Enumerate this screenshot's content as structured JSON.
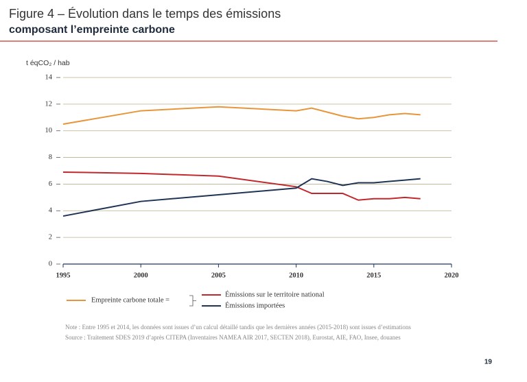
{
  "title": "Figure 4 – Évolution dans le temps des émissions",
  "subtitle": "composant l’empreinte carbone",
  "page_number": "19",
  "chart_data": {
    "type": "line",
    "y_axis_label": "t éqCO₂ / hab",
    "x": [
      1995,
      2000,
      2005,
      2010,
      2011,
      2012,
      2013,
      2014,
      2015,
      2016,
      2017,
      2018
    ],
    "series": [
      {
        "name": "Empreinte carbone totale =",
        "color": "#e8953a",
        "values": [
          10.5,
          11.5,
          11.8,
          11.5,
          11.7,
          11.4,
          11.1,
          10.9,
          11.0,
          11.2,
          11.3,
          11.2
        ]
      },
      {
        "name": "Émissions sur le territoire national",
        "color": "#c0282d",
        "values": [
          6.9,
          6.8,
          6.6,
          5.8,
          5.3,
          5.3,
          5.3,
          4.8,
          4.9,
          4.9,
          5.0,
          4.9
        ]
      },
      {
        "name": "Émissions importées",
        "color": "#1f3354",
        "values": [
          3.6,
          4.7,
          5.2,
          5.7,
          6.4,
          6.2,
          5.9,
          6.1,
          6.1,
          6.2,
          6.3,
          6.4
        ]
      }
    ],
    "xlim": [
      1995,
      2020
    ],
    "xticks": [
      1995,
      2000,
      2005,
      2010,
      2015,
      2020
    ],
    "ylim": [
      0,
      14
    ],
    "yticks": [
      0,
      2,
      4,
      6,
      8,
      10,
      12,
      14
    ],
    "grid": true,
    "notes": [
      "Note : Entre 1995 et 2014, les données sont issues d’un calcul détaillé tandis que les dernières années (2015-2018) sont issues d’estimations",
      "Source : Traitement SDES 2019 d’après CITEPA (Inventaires NAMEA AIR 2017, SECTEN 2018), Eurostat, AIE, FAO, Insee, douanes"
    ]
  }
}
